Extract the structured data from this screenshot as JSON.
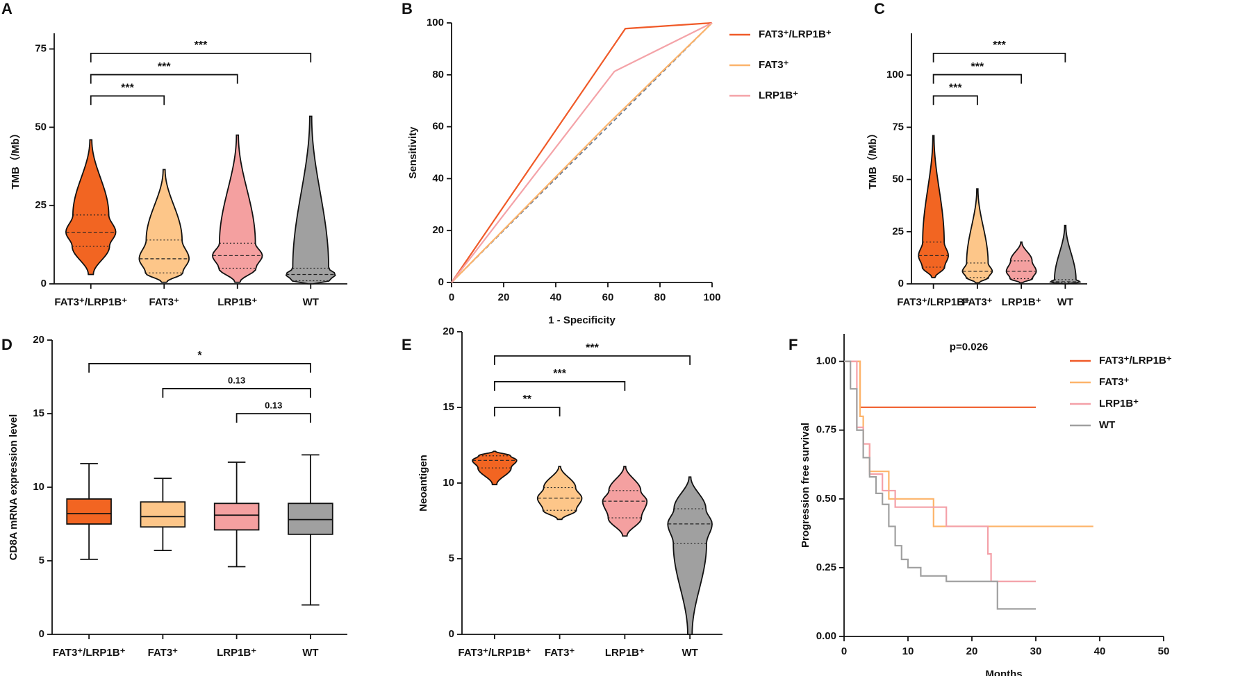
{
  "chart_data": [
    {
      "type": "violin",
      "panel": "A",
      "ylabel": "TMB（/Mb）",
      "ylim": [
        0,
        80
      ],
      "yticks": [
        0,
        25,
        50,
        75
      ],
      "groups": [
        {
          "name": "FAT3⁺/LRP1B⁺",
          "color": "#f26522",
          "min": 3,
          "q1": 12,
          "median": 16.5,
          "q3": 22,
          "max": 46
        },
        {
          "name": "FAT3⁺",
          "color": "#fdc689",
          "min": 0.5,
          "q1": 3.5,
          "median": 8,
          "q3": 14,
          "max": 36.5
        },
        {
          "name": "LRP1B⁺",
          "color": "#f4a0a0",
          "min": 0.5,
          "q1": 5,
          "median": 9,
          "q3": 13,
          "max": 47.5
        },
        {
          "name": "WT",
          "color": "#a0a0a0",
          "min": 0,
          "q1": 1,
          "median": 3,
          "q3": 5,
          "max": 53.5
        }
      ],
      "comparisons": [
        {
          "pair": [
            "FAT3⁺/LRP1B⁺",
            "WT"
          ],
          "label": "***",
          "color": "#e8262b"
        },
        {
          "pair": [
            "FAT3⁺/LRP1B⁺",
            "LRP1B⁺"
          ],
          "label": "***",
          "color": "#e8262b"
        },
        {
          "pair": [
            "FAT3⁺/LRP1B⁺",
            "FAT3⁺"
          ],
          "label": "***",
          "color": "#e8262b"
        }
      ]
    },
    {
      "type": "line",
      "panel": "B",
      "xlabel": "1 - Specificity",
      "ylabel": "Sensitivity",
      "xlim": [
        0,
        100
      ],
      "ylim": [
        0,
        100
      ],
      "xticks": [
        0,
        20,
        40,
        60,
        80,
        100
      ],
      "yticks": [
        0,
        20,
        40,
        60,
        80,
        100
      ],
      "reference_line": true,
      "series": [
        {
          "name": "FAT3⁺/LRP1B⁺",
          "color": "#f05a28",
          "x": [
            0,
            66.7,
            100
          ],
          "y": [
            0,
            97.8,
            100
          ]
        },
        {
          "name": "FAT3⁺",
          "color": "#fbb36b",
          "x": [
            0,
            60,
            100
          ],
          "y": [
            0,
            61,
            100
          ]
        },
        {
          "name": "LRP1B⁺",
          "color": "#f4a3a8",
          "x": [
            0,
            62.5,
            100
          ],
          "y": [
            0,
            81.3,
            100
          ]
        }
      ]
    },
    {
      "type": "violin",
      "panel": "C",
      "ylabel": "TMB（/Mb）",
      "ylim": [
        0,
        120
      ],
      "yticks": [
        0,
        25,
        50,
        75,
        100
      ],
      "groups": [
        {
          "name": "FAT3⁺/LRP1B⁺",
          "color": "#f26522",
          "min": 3,
          "q1": 8,
          "median": 13.5,
          "q3": 20,
          "max": 71
        },
        {
          "name": "FAT3⁺",
          "color": "#fdc689",
          "min": 0.5,
          "q1": 3,
          "median": 6,
          "q3": 10,
          "max": 45.5
        },
        {
          "name": "LRP1B⁺",
          "color": "#f4a0a0",
          "min": 0.5,
          "q1": 2.5,
          "median": 6,
          "q3": 11,
          "max": 20
        },
        {
          "name": "WT",
          "color": "#a0a0a0",
          "min": 0,
          "q1": 0.5,
          "median": 1,
          "q3": 2,
          "max": 28
        }
      ],
      "comparisons": [
        {
          "pair": [
            "FAT3⁺/LRP1B⁺",
            "WT"
          ],
          "label": "***",
          "color": "#e8262b"
        },
        {
          "pair": [
            "FAT3⁺/LRP1B⁺",
            "LRP1B⁺"
          ],
          "label": "***",
          "color": "#e8262b"
        },
        {
          "pair": [
            "FAT3⁺/LRP1B⁺",
            "FAT3⁺"
          ],
          "label": "***",
          "color": "#e8262b"
        }
      ]
    },
    {
      "type": "box",
      "panel": "D",
      "ylabel": "CD8A mRNA expression level",
      "ylim": [
        0,
        20
      ],
      "yticks": [
        0,
        5,
        10,
        15,
        20
      ],
      "groups": [
        {
          "name": "FAT3⁺/LRP1B⁺",
          "color": "#f26522",
          "min": 5.1,
          "q1": 7.5,
          "median": 8.2,
          "q3": 9.2,
          "max": 11.6
        },
        {
          "name": "FAT3⁺",
          "color": "#fdc689",
          "min": 5.7,
          "q1": 7.3,
          "median": 8.0,
          "q3": 9.0,
          "max": 10.6
        },
        {
          "name": "LRP1B⁺",
          "color": "#f4a0a0",
          "min": 4.6,
          "q1": 7.1,
          "median": 8.1,
          "q3": 8.9,
          "max": 11.7
        },
        {
          "name": "WT",
          "color": "#a0a0a0",
          "min": 2.0,
          "q1": 6.8,
          "median": 7.8,
          "q3": 8.9,
          "max": 12.2
        }
      ],
      "comparisons": [
        {
          "pair": [
            "FAT3⁺/LRP1B⁺",
            "WT"
          ],
          "label": "*",
          "color": "#e8262b"
        },
        {
          "pair": [
            "FAT3⁺",
            "WT"
          ],
          "label": "0.13",
          "color": "#111111"
        },
        {
          "pair": [
            "LRP1B⁺",
            "WT"
          ],
          "label": "0.13",
          "color": "#111111"
        }
      ]
    },
    {
      "type": "violin",
      "panel": "E",
      "ylabel": "Neoantigen",
      "ylim": [
        0,
        20
      ],
      "yticks": [
        0,
        5,
        10,
        15,
        20
      ],
      "groups": [
        {
          "name": "FAT3⁺/LRP1B⁺",
          "color": "#f26522",
          "min": 9.9,
          "q1": 11.0,
          "median": 11.5,
          "q3": 11.8,
          "max": 12.1
        },
        {
          "name": "FAT3⁺",
          "color": "#fdc689",
          "min": 7.6,
          "q1": 8.2,
          "median": 9.0,
          "q3": 9.7,
          "max": 11.1
        },
        {
          "name": "LRP1B⁺",
          "color": "#f4a0a0",
          "min": 6.5,
          "q1": 7.7,
          "median": 8.8,
          "q3": 9.5,
          "max": 11.1
        },
        {
          "name": "WT",
          "color": "#a0a0a0",
          "min": 0,
          "q1": 6.0,
          "median": 7.3,
          "q3": 8.3,
          "max": 10.4
        }
      ],
      "comparisons": [
        {
          "pair": [
            "FAT3⁺/LRP1B⁺",
            "WT"
          ],
          "label": "***",
          "color": "#e8262b"
        },
        {
          "pair": [
            "FAT3⁺/LRP1B⁺",
            "LRP1B⁺"
          ],
          "label": "***",
          "color": "#e8262b"
        },
        {
          "pair": [
            "FAT3⁺/LRP1B⁺",
            "FAT3⁺"
          ],
          "label": "**",
          "color": "#e8262b"
        }
      ]
    },
    {
      "type": "step",
      "panel": "F",
      "xlabel": "Months",
      "ylabel": "Progression free survival",
      "annotation": "p=0.026",
      "xlim": [
        0,
        50
      ],
      "ylim": [
        0,
        1.1
      ],
      "xticks": [
        0,
        10,
        20,
        30,
        40,
        50
      ],
      "yticks": [
        {
          "value": 0,
          "label": "0.00"
        },
        {
          "value": 0.25,
          "label": "0.25"
        },
        {
          "value": 0.5,
          "label": "0.50"
        },
        {
          "value": 0.75,
          "label": "0.75"
        },
        {
          "value": 1,
          "label": "1.00"
        }
      ],
      "series": [
        {
          "name": "FAT3⁺/LRP1B⁺",
          "color": "#f05a28",
          "x": [
            0,
            2.5,
            30
          ],
          "y": [
            1,
            0.833,
            0.833
          ]
        },
        {
          "name": "FAT3⁺",
          "color": "#fdb46a",
          "x": [
            0,
            2.5,
            3,
            4,
            7,
            14,
            39
          ],
          "y": [
            1,
            0.8,
            0.7,
            0.6,
            0.5,
            0.4,
            0.4
          ]
        },
        {
          "name": "LRP1B⁺",
          "color": "#f4a0a8",
          "x": [
            0,
            2,
            3,
            4,
            6,
            8,
            16,
            22.5,
            23,
            30
          ],
          "y": [
            1,
            0.76,
            0.7,
            0.59,
            0.53,
            0.47,
            0.4,
            0.3,
            0.2,
            0.2
          ]
        },
        {
          "name": "WT",
          "color": "#a0a0a0",
          "x": [
            0,
            1,
            2,
            3,
            4,
            5,
            6,
            7,
            8,
            9,
            10,
            12,
            16,
            24,
            30
          ],
          "y": [
            1,
            0.9,
            0.75,
            0.65,
            0.58,
            0.52,
            0.48,
            0.4,
            0.33,
            0.28,
            0.25,
            0.22,
            0.2,
            0.1,
            0.1
          ]
        }
      ]
    }
  ]
}
